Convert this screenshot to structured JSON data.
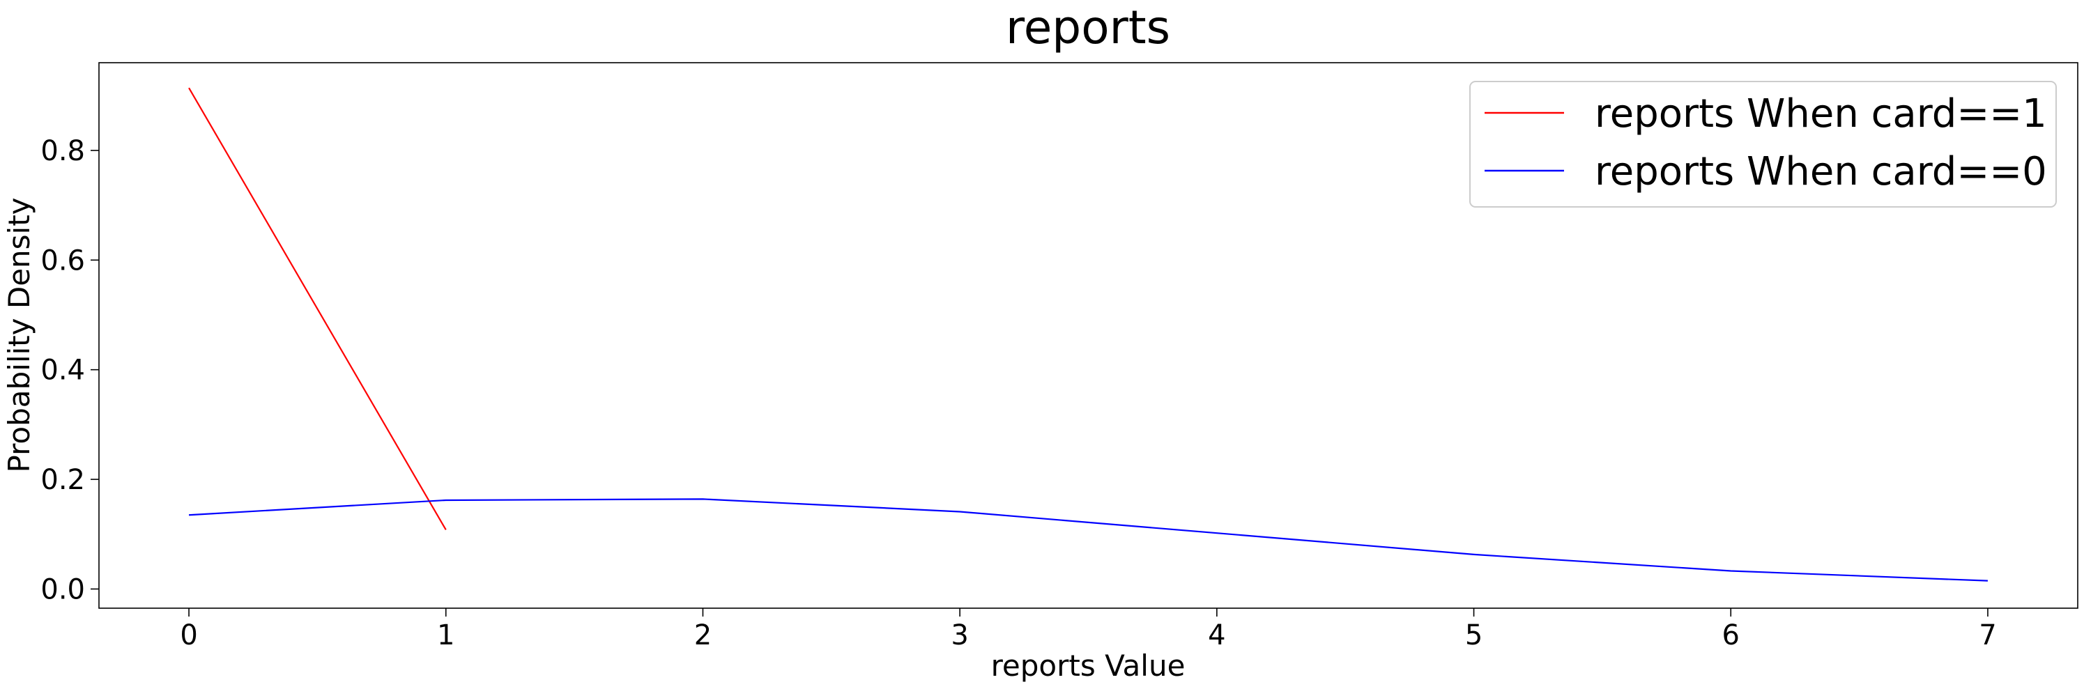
{
  "chart_data": {
    "type": "line",
    "title": "reports",
    "xlabel": "reports Value",
    "ylabel": "Probability Density",
    "xlim": [
      -0.35,
      7.35
    ],
    "ylim": [
      -0.035,
      0.96
    ],
    "xticks": [
      0,
      1,
      2,
      3,
      4,
      5,
      6,
      7
    ],
    "xtick_labels": [
      "0",
      "1",
      "2",
      "3",
      "4",
      "5",
      "6",
      "7"
    ],
    "yticks": [
      0.0,
      0.2,
      0.4,
      0.6,
      0.8
    ],
    "ytick_labels": [
      "0.0",
      "0.2",
      "0.4",
      "0.6",
      "0.8"
    ],
    "grid": false,
    "legend_position": "top-right",
    "series": [
      {
        "name": "reports When card==1",
        "color": "#ff0000",
        "x": [
          0,
          1
        ],
        "y": [
          0.914,
          0.108
        ]
      },
      {
        "name": "reports When card==0",
        "color": "#0000ff",
        "x": [
          0,
          1,
          2,
          3,
          4,
          5,
          6,
          7
        ],
        "y": [
          0.135,
          0.162,
          0.164,
          0.141,
          0.102,
          0.063,
          0.033,
          0.015
        ]
      }
    ]
  }
}
